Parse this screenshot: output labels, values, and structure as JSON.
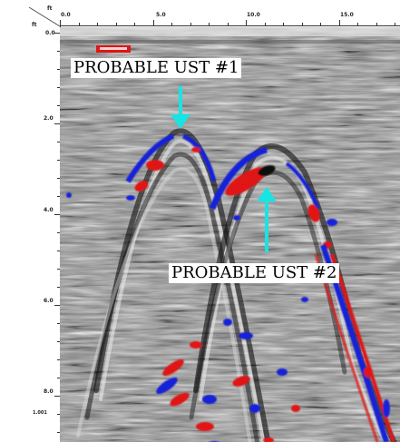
{
  "image": {
    "x_axis": {
      "unit": "ft",
      "ticks": [
        "0.0",
        "5.0",
        "10.0",
        "15.0"
      ]
    },
    "y_axis": {
      "unit": "ft",
      "ticks": [
        "0.0",
        "2.0",
        "4.0",
        "6.0",
        "8.0"
      ]
    },
    "corner_readout": "1.001",
    "annotations": [
      {
        "text": "PROBABLE UST #1"
      },
      {
        "text": "PROBABLE UST #2"
      }
    ],
    "arrow_color": "#19e4e4",
    "signal_colors": {
      "positive": "#e01515",
      "negative": "#1520d8",
      "background": "#8c8c8c"
    }
  }
}
